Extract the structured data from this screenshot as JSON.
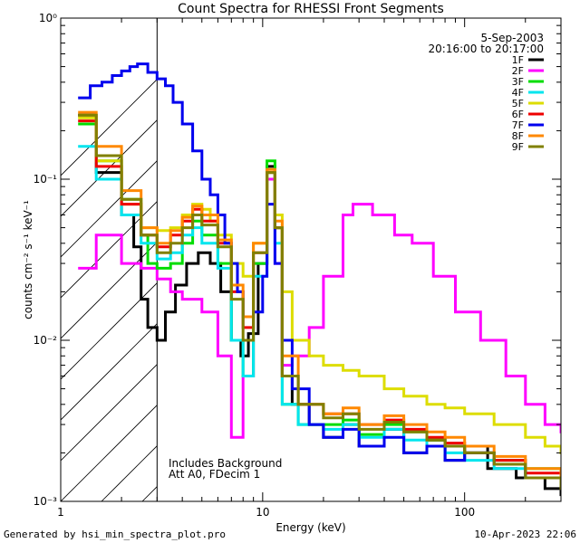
{
  "chart_data": {
    "type": "line",
    "title": "Count Spectra for RHESSI Front Segments",
    "xlabel": "Energy (keV)",
    "ylabel": "counts cm⁻² s⁻¹ keV⁻¹",
    "xscale": "log",
    "yscale": "log",
    "xlim": [
      1,
      300
    ],
    "ylim": [
      0.001,
      1
    ],
    "x_tick_labels": [
      {
        "value": 1,
        "label": "1"
      },
      {
        "value": 10,
        "label": "10"
      },
      {
        "value": 100,
        "label": "100"
      }
    ],
    "y_tick_labels": [
      {
        "value": 1,
        "label": "10⁰"
      },
      {
        "value": 0.1,
        "label": "10⁻¹"
      },
      {
        "value": 0.01,
        "label": "10⁻²"
      },
      {
        "value": 0.001,
        "label": "10⁻³"
      }
    ],
    "shaded_region": {
      "from": 1,
      "to": 3,
      "style": "hatched"
    },
    "date": "5-Sep-2003",
    "time_range": "20:16:00 to 20:17:00",
    "annotations": [
      "Includes Background",
      "Att A0, FDecim 1"
    ],
    "series": [
      {
        "name": "1F",
        "color": "#000000",
        "values": [
          [
            1.22,
            0.25
          ],
          [
            1.5,
            0.11
          ],
          [
            2.0,
            0.06
          ],
          [
            2.3,
            0.038
          ],
          [
            2.5,
            0.018
          ],
          [
            2.7,
            0.012
          ],
          [
            3.0,
            0.01
          ],
          [
            3.3,
            0.015
          ],
          [
            3.7,
            0.022
          ],
          [
            4.2,
            0.03
          ],
          [
            4.8,
            0.035
          ],
          [
            5.5,
            0.03
          ],
          [
            6.2,
            0.02
          ],
          [
            7.0,
            0.01
          ],
          [
            7.8,
            0.008
          ],
          [
            8.5,
            0.011
          ],
          [
            9.5,
            0.03
          ],
          [
            10.5,
            0.12
          ],
          [
            11.5,
            0.05
          ],
          [
            12.5,
            0.006
          ],
          [
            14,
            0.004
          ],
          [
            17,
            0.003
          ],
          [
            20,
            0.0025
          ],
          [
            25,
            0.003
          ],
          [
            30,
            0.0022
          ],
          [
            40,
            0.0028
          ],
          [
            50,
            0.002
          ],
          [
            65,
            0.0024
          ],
          [
            80,
            0.0018
          ],
          [
            100,
            0.0022
          ],
          [
            130,
            0.0016
          ],
          [
            180,
            0.0014
          ],
          [
            250,
            0.0012
          ],
          [
            300,
            0.0011
          ]
        ]
      },
      {
        "name": "2F",
        "color": "#ff00ff",
        "values": [
          [
            1.22,
            0.028
          ],
          [
            1.5,
            0.045
          ],
          [
            2.0,
            0.03
          ],
          [
            2.5,
            0.028
          ],
          [
            3.0,
            0.024
          ],
          [
            3.5,
            0.02
          ],
          [
            4.0,
            0.018
          ],
          [
            5.0,
            0.015
          ],
          [
            6.0,
            0.008
          ],
          [
            7.0,
            0.0025
          ],
          [
            8.0,
            0.006
          ],
          [
            9.0,
            0.03
          ],
          [
            10.5,
            0.1
          ],
          [
            11.5,
            0.03
          ],
          [
            12.5,
            0.007
          ],
          [
            14,
            0.008
          ],
          [
            17,
            0.012
          ],
          [
            20,
            0.025
          ],
          [
            25,
            0.06
          ],
          [
            28,
            0.07
          ],
          [
            35,
            0.06
          ],
          [
            45,
            0.045
          ],
          [
            55,
            0.04
          ],
          [
            70,
            0.025
          ],
          [
            90,
            0.015
          ],
          [
            120,
            0.01
          ],
          [
            160,
            0.006
          ],
          [
            200,
            0.004
          ],
          [
            250,
            0.003
          ],
          [
            300,
            0.0027
          ]
        ]
      },
      {
        "name": "3F",
        "color": "#00dd00",
        "values": [
          [
            1.22,
            0.22
          ],
          [
            1.5,
            0.13
          ],
          [
            2.0,
            0.075
          ],
          [
            2.5,
            0.045
          ],
          [
            2.7,
            0.03
          ],
          [
            3.0,
            0.028
          ],
          [
            3.5,
            0.03
          ],
          [
            4.0,
            0.04
          ],
          [
            4.5,
            0.055
          ],
          [
            5.0,
            0.045
          ],
          [
            6.0,
            0.03
          ],
          [
            7.0,
            0.01
          ],
          [
            8.0,
            0.006
          ],
          [
            9.0,
            0.03
          ],
          [
            10.5,
            0.13
          ],
          [
            11.5,
            0.05
          ],
          [
            12.5,
            0.004
          ],
          [
            15,
            0.003
          ],
          [
            20,
            0.003
          ],
          [
            25,
            0.0032
          ],
          [
            30,
            0.0026
          ],
          [
            40,
            0.003
          ],
          [
            50,
            0.0027
          ],
          [
            65,
            0.0024
          ],
          [
            80,
            0.0022
          ],
          [
            100,
            0.002
          ],
          [
            140,
            0.0018
          ],
          [
            200,
            0.0016
          ],
          [
            300,
            0.0013
          ]
        ]
      },
      {
        "name": "4F",
        "color": "#00e5ee",
        "values": [
          [
            1.22,
            0.16
          ],
          [
            1.5,
            0.1
          ],
          [
            2.0,
            0.06
          ],
          [
            2.5,
            0.04
          ],
          [
            3.0,
            0.032
          ],
          [
            3.5,
            0.035
          ],
          [
            4.0,
            0.045
          ],
          [
            4.5,
            0.05
          ],
          [
            5.0,
            0.04
          ],
          [
            6.0,
            0.028
          ],
          [
            7.0,
            0.01
          ],
          [
            8.0,
            0.006
          ],
          [
            9.0,
            0.025
          ],
          [
            10.5,
            0.11
          ],
          [
            11.5,
            0.04
          ],
          [
            12.5,
            0.004
          ],
          [
            15,
            0.003
          ],
          [
            20,
            0.0028
          ],
          [
            25,
            0.003
          ],
          [
            30,
            0.0025
          ],
          [
            40,
            0.0028
          ],
          [
            50,
            0.0024
          ],
          [
            65,
            0.0022
          ],
          [
            80,
            0.002
          ],
          [
            100,
            0.0018
          ],
          [
            140,
            0.0016
          ],
          [
            200,
            0.0014
          ],
          [
            300,
            0.0012
          ]
        ]
      },
      {
        "name": "5F",
        "color": "#dddd00",
        "values": [
          [
            1.22,
            0.24
          ],
          [
            1.5,
            0.13
          ],
          [
            2.0,
            0.07
          ],
          [
            2.5,
            0.05
          ],
          [
            3.0,
            0.048
          ],
          [
            3.5,
            0.05
          ],
          [
            4.0,
            0.06
          ],
          [
            4.5,
            0.07
          ],
          [
            5.0,
            0.065
          ],
          [
            5.5,
            0.055
          ],
          [
            6.0,
            0.045
          ],
          [
            7.0,
            0.03
          ],
          [
            8.0,
            0.025
          ],
          [
            9.0,
            0.04
          ],
          [
            10.5,
            0.11
          ],
          [
            11.5,
            0.06
          ],
          [
            12.5,
            0.02
          ],
          [
            14,
            0.01
          ],
          [
            17,
            0.008
          ],
          [
            20,
            0.007
          ],
          [
            25,
            0.0065
          ],
          [
            30,
            0.006
          ],
          [
            40,
            0.005
          ],
          [
            50,
            0.0045
          ],
          [
            65,
            0.004
          ],
          [
            80,
            0.0038
          ],
          [
            100,
            0.0035
          ],
          [
            140,
            0.003
          ],
          [
            200,
            0.0025
          ],
          [
            250,
            0.0022
          ],
          [
            300,
            0.002
          ]
        ]
      },
      {
        "name": "6F",
        "color": "#ee0000",
        "values": [
          [
            1.22,
            0.23
          ],
          [
            1.5,
            0.12
          ],
          [
            2.0,
            0.07
          ],
          [
            2.5,
            0.045
          ],
          [
            3.0,
            0.038
          ],
          [
            3.5,
            0.045
          ],
          [
            4.0,
            0.055
          ],
          [
            4.5,
            0.065
          ],
          [
            5.0,
            0.055
          ],
          [
            6.0,
            0.04
          ],
          [
            7.0,
            0.02
          ],
          [
            8.0,
            0.012
          ],
          [
            9.0,
            0.035
          ],
          [
            10.5,
            0.11
          ],
          [
            11.5,
            0.05
          ],
          [
            12.5,
            0.006
          ],
          [
            15,
            0.004
          ],
          [
            20,
            0.0035
          ],
          [
            25,
            0.0035
          ],
          [
            30,
            0.003
          ],
          [
            40,
            0.0032
          ],
          [
            50,
            0.0028
          ],
          [
            65,
            0.0025
          ],
          [
            80,
            0.0023
          ],
          [
            100,
            0.002
          ],
          [
            140,
            0.0018
          ],
          [
            200,
            0.0015
          ],
          [
            300,
            0.0013
          ]
        ]
      },
      {
        "name": "7F",
        "color": "#0000ee",
        "values": [
          [
            1.22,
            0.32
          ],
          [
            1.4,
            0.38
          ],
          [
            1.6,
            0.4
          ],
          [
            1.8,
            0.44
          ],
          [
            2.0,
            0.47
          ],
          [
            2.2,
            0.5
          ],
          [
            2.4,
            0.52
          ],
          [
            2.7,
            0.46
          ],
          [
            3.0,
            0.42
          ],
          [
            3.3,
            0.38
          ],
          [
            3.6,
            0.3
          ],
          [
            4.0,
            0.22
          ],
          [
            4.5,
            0.15
          ],
          [
            5.0,
            0.1
          ],
          [
            5.5,
            0.08
          ],
          [
            6.0,
            0.06
          ],
          [
            6.5,
            0.04
          ],
          [
            7.0,
            0.03
          ],
          [
            7.5,
            0.02
          ],
          [
            8.0,
            0.014
          ],
          [
            9.0,
            0.015
          ],
          [
            10.0,
            0.025
          ],
          [
            10.5,
            0.07
          ],
          [
            11.5,
            0.03
          ],
          [
            12.5,
            0.01
          ],
          [
            14,
            0.005
          ],
          [
            17,
            0.003
          ],
          [
            20,
            0.0025
          ],
          [
            25,
            0.0028
          ],
          [
            30,
            0.0022
          ],
          [
            40,
            0.0025
          ],
          [
            50,
            0.002
          ],
          [
            65,
            0.0022
          ],
          [
            80,
            0.0018
          ],
          [
            100,
            0.002
          ],
          [
            140,
            0.0017
          ],
          [
            200,
            0.0014
          ],
          [
            300,
            0.0012
          ]
        ]
      },
      {
        "name": "8F",
        "color": "#ff8800",
        "values": [
          [
            1.22,
            0.26
          ],
          [
            1.5,
            0.16
          ],
          [
            2.0,
            0.085
          ],
          [
            2.5,
            0.05
          ],
          [
            3.0,
            0.04
          ],
          [
            3.5,
            0.048
          ],
          [
            4.0,
            0.058
          ],
          [
            4.5,
            0.068
          ],
          [
            5.0,
            0.06
          ],
          [
            6.0,
            0.042
          ],
          [
            7.0,
            0.022
          ],
          [
            8.0,
            0.014
          ],
          [
            9.0,
            0.04
          ],
          [
            10.5,
            0.115
          ],
          [
            11.5,
            0.055
          ],
          [
            12.5,
            0.008
          ],
          [
            15,
            0.004
          ],
          [
            20,
            0.0035
          ],
          [
            25,
            0.0038
          ],
          [
            30,
            0.003
          ],
          [
            40,
            0.0034
          ],
          [
            50,
            0.003
          ],
          [
            65,
            0.0027
          ],
          [
            80,
            0.0025
          ],
          [
            100,
            0.0022
          ],
          [
            140,
            0.0019
          ],
          [
            200,
            0.0016
          ],
          [
            300,
            0.0013
          ]
        ]
      },
      {
        "name": "9F",
        "color": "#808000",
        "values": [
          [
            1.22,
            0.25
          ],
          [
            1.5,
            0.14
          ],
          [
            2.0,
            0.075
          ],
          [
            2.5,
            0.045
          ],
          [
            3.0,
            0.035
          ],
          [
            3.5,
            0.04
          ],
          [
            4.0,
            0.05
          ],
          [
            4.5,
            0.06
          ],
          [
            5.0,
            0.052
          ],
          [
            6.0,
            0.038
          ],
          [
            7.0,
            0.018
          ],
          [
            8.0,
            0.01
          ],
          [
            9.0,
            0.035
          ],
          [
            10.5,
            0.11
          ],
          [
            11.5,
            0.05
          ],
          [
            12.5,
            0.006
          ],
          [
            15,
            0.004
          ],
          [
            20,
            0.0033
          ],
          [
            25,
            0.0035
          ],
          [
            30,
            0.0028
          ],
          [
            40,
            0.0031
          ],
          [
            50,
            0.0027
          ],
          [
            65,
            0.0024
          ],
          [
            80,
            0.0022
          ],
          [
            100,
            0.002
          ],
          [
            140,
            0.0017
          ],
          [
            200,
            0.0014
          ],
          [
            300,
            0.0012
          ]
        ]
      }
    ]
  },
  "footer": {
    "left": "Generated by hsi_min_spectra_plot.pro",
    "right": "10-Apr-2023 22:06"
  }
}
